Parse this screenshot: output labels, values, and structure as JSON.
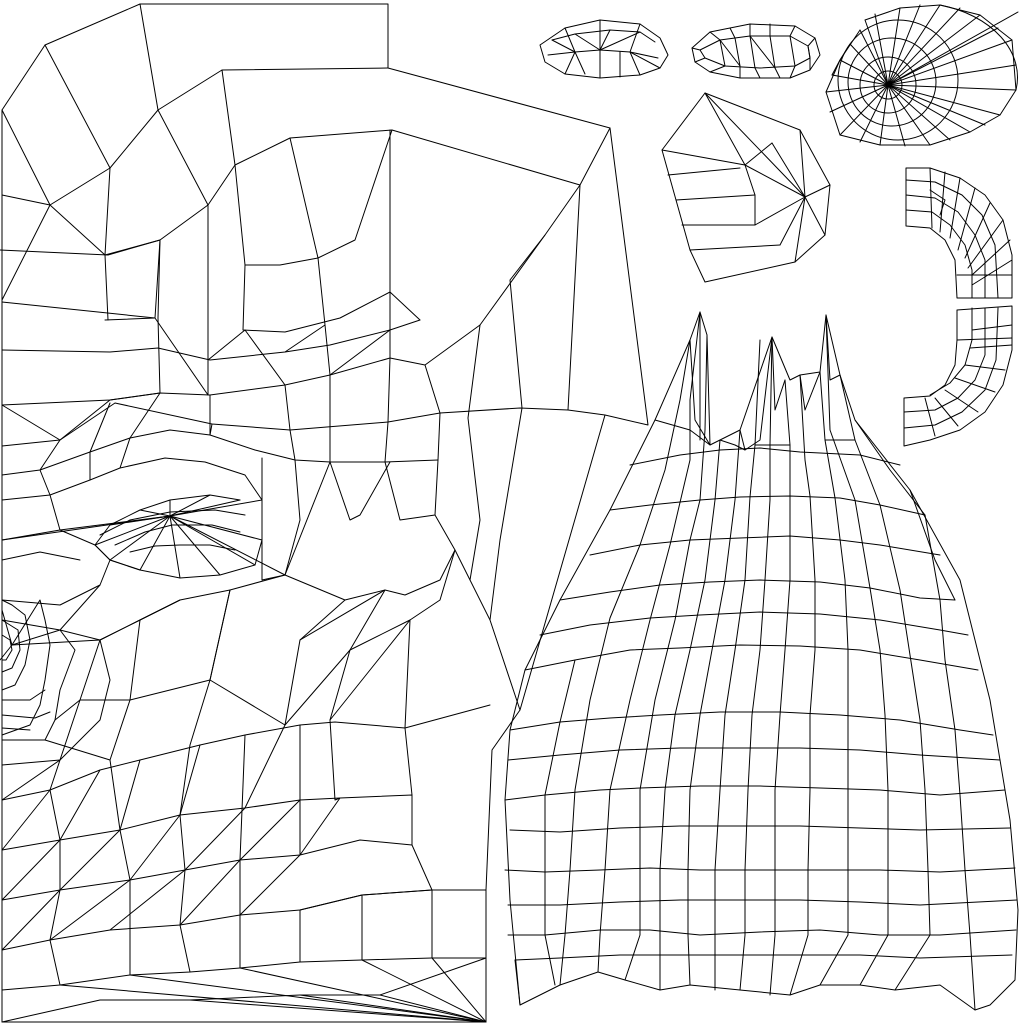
{
  "canvas": {
    "background": "#ffffff",
    "stroke_color": "#000000"
  },
  "content": {
    "text_labels": [],
    "description_note": ""
  },
  "islands": [
    "head-face-island",
    "torso-cloth-island",
    "small-cap-island-left",
    "small-cap-island-middle",
    "radial-disc-island",
    "five-sided-island",
    "curved-strip-island-upper",
    "curved-strip-island-lower"
  ]
}
